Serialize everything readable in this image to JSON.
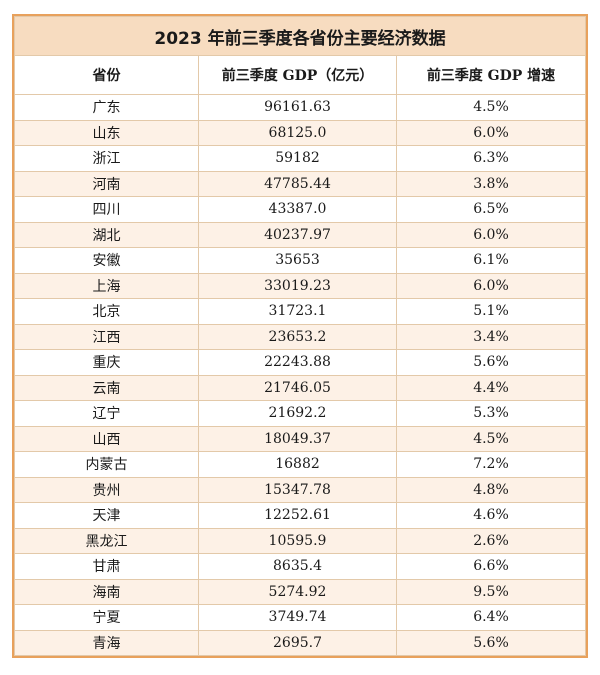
{
  "title": "2023 年前三季度各省份主要经济数据",
  "headers": [
    "省份",
    "前三季度 GDP（亿元）",
    "前三季度 GDP 增速"
  ],
  "rows": [
    [
      "广东",
      "96161.63",
      "4.5%"
    ],
    [
      "山东",
      "68125.0",
      "6.0%"
    ],
    [
      "浙江",
      "59182",
      "6.3%"
    ],
    [
      "河南",
      "47785.44",
      "3.8%"
    ],
    [
      "四川",
      "43387.0",
      "6.5%"
    ],
    [
      "湖北",
      "40237.97",
      "6.0%"
    ],
    [
      "安徽",
      "35653",
      "6.1%"
    ],
    [
      "上海",
      "33019.23",
      "6.0%"
    ],
    [
      "北京",
      "31723.1",
      "5.1%"
    ],
    [
      "江西",
      "23653.2",
      "3.4%"
    ],
    [
      "重庆",
      "22243.88",
      "5.6%"
    ],
    [
      "云南",
      "21746.05",
      "4.4%"
    ],
    [
      "辽宁",
      "21692.2",
      "5.3%"
    ],
    [
      "山西",
      "18049.37",
      "4.5%"
    ],
    [
      "内蒙古",
      "16882",
      "7.2%"
    ],
    [
      "贵州",
      "15347.78",
      "4.8%"
    ],
    [
      "天津",
      "12252.61",
      "4.6%"
    ],
    [
      "黑龙江",
      "10595.9",
      "2.6%"
    ],
    [
      "甘肃",
      "8635.4",
      "6.6%"
    ],
    [
      "海南",
      "5274.92",
      "9.5%"
    ],
    [
      "宁夏",
      "3749.74",
      "6.4%"
    ],
    [
      "青海",
      "2695.7",
      "5.6%"
    ]
  ]
}
